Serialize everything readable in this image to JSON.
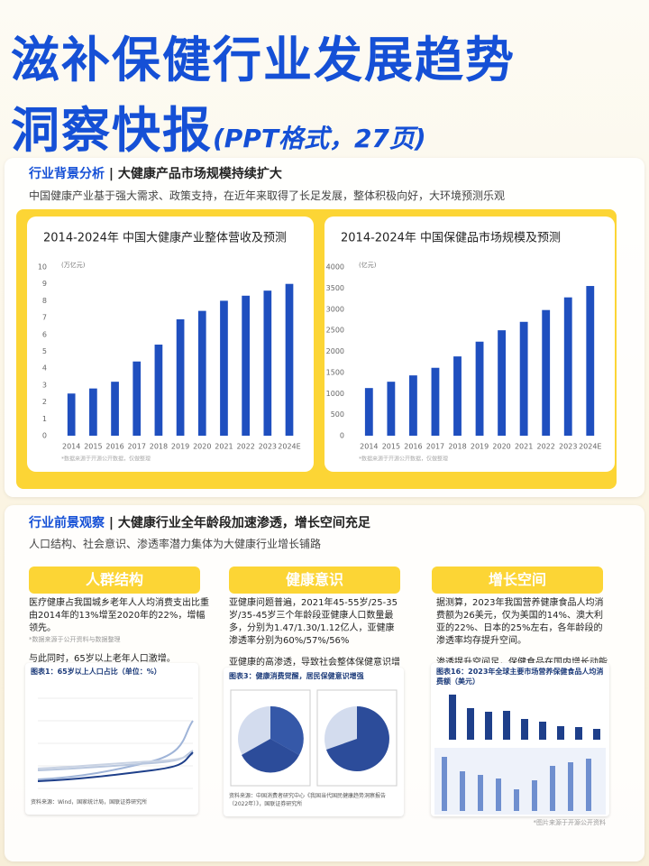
{
  "header": {
    "title_line1": "滋补保健行业发展趋势",
    "title_line2": "洞察快报",
    "title_suffix": "(PPT格式，27页)"
  },
  "section1": {
    "tag": "行业背景分析",
    "title": "大健康产品市场规模持续扩大",
    "subtitle": "中国健康产业基于强大需求、政策支持，在近年来取得了长足发展，整体积极向好，大环境预测乐观"
  },
  "chart_data": [
    {
      "type": "bar",
      "title": "2014-2024年 中国大健康产业整体营收及预测",
      "unit": "(万亿元)",
      "note": "*数据来源于开源公开数据，仅做整理",
      "categories": [
        "2014",
        "2015",
        "2016",
        "2017",
        "2018",
        "2019",
        "2020",
        "2021",
        "2022",
        "2023",
        "2024E"
      ],
      "values": [
        2.5,
        2.8,
        3.2,
        4.4,
        5.4,
        6.9,
        7.4,
        8.0,
        8.3,
        8.6,
        9.0
      ],
      "color": "#1f4fbf",
      "ylim": [
        0,
        10
      ],
      "yticks": [
        0,
        1,
        2,
        3,
        4,
        5,
        6,
        7,
        8,
        9,
        10
      ],
      "grid": false
    },
    {
      "type": "bar",
      "title": "2014-2024年 中国保健品市场规模及预测",
      "unit": "(亿元)",
      "note": "*数据来源于开源公开数据，仅做整理",
      "categories": [
        "2014",
        "2015",
        "2016",
        "2017",
        "2018",
        "2019",
        "2020",
        "2021",
        "2022",
        "2023",
        "2024E"
      ],
      "values": [
        1130,
        1280,
        1430,
        1610,
        1880,
        2230,
        2500,
        2700,
        2980,
        3280,
        3550
      ],
      "color": "#1f4fbf",
      "ylim": [
        0,
        4000
      ],
      "yticks": [
        0,
        500,
        1000,
        1500,
        2000,
        2500,
        3000,
        3500,
        4000
      ],
      "grid": false
    }
  ],
  "section2": {
    "tag": "行业前景观察",
    "title": "大健康行业全年龄段加速渗透，增长空间充足",
    "subtitle": "人口结构、社会意识、渗透率潜力集体为大健康行业增长铺路",
    "columns": [
      {
        "header": "人群结构",
        "paragraphs": [
          "医疗健康占我国城乡老年人人均消费支出比重由2014年的13%增至2020年的22%，增幅领先。",
          "与此同时，65岁以上老年人口激增。"
        ],
        "note": "*数据来源于公开资料与数据整理",
        "figure": {
          "title": "图表1：65岁以上人口占比（单位：%）",
          "source": "资料来源：Wind，国家统计局，国联证券研究所"
        }
      },
      {
        "header": "健康意识",
        "paragraphs": [
          "亚健康问题普遍，2021年45-55岁/25-35岁/35-45岁三个年龄段亚健康人口数量最多，分别为1.47/1.30/1.12亿人，亚健康渗透率分别为60%/57%/56%",
          "亚健康的高渗透，导致社会整体保健意识增强。"
        ],
        "figure": {
          "title": "图表3：健康消费觉醒，居民保健意识增强",
          "source": "资料来源：中国消费者研究中心《我国当代国民健康趋势洞察报告（2022年）》，国联证券研究所"
        }
      },
      {
        "header": "增长空间",
        "paragraphs": [
          "据测算，2023年我国营养健康食品人均消费额为26美元，仅为美国的14%、澳大利亚的22%、日本的25%左右，各年龄段的渗透率均存提升空间。",
          "渗透提升空间足，保健食品在国内增长动能强劲"
        ],
        "note": "*图片来源于开源公开资料",
        "figure": {
          "title": "图表16：2023年全球主要市场营养保健食品人均消费额（美元）",
          "source": ""
        }
      }
    ]
  }
}
